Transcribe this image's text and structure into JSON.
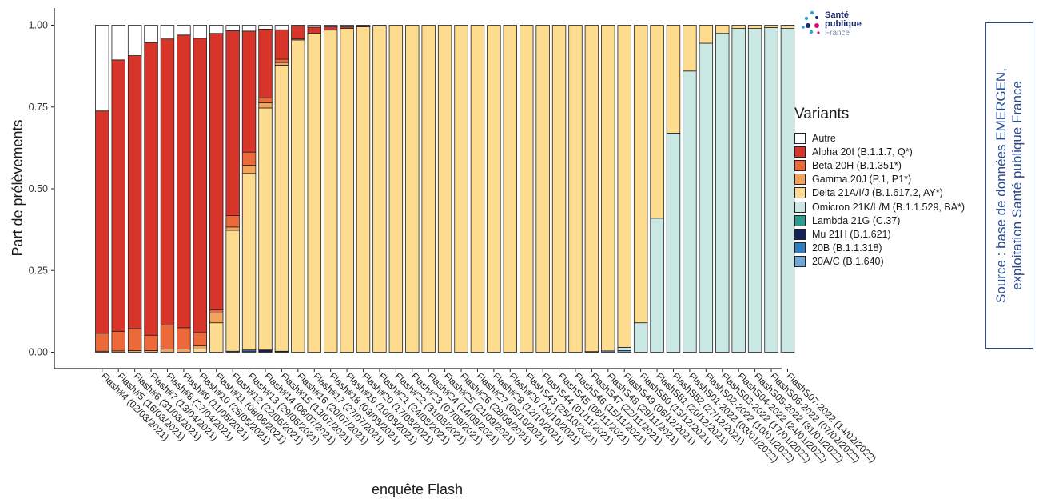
{
  "chart_data": {
    "type": "bar",
    "stacked": true,
    "xlabel": "enquête Flash",
    "ylabel": "Part de prélèvements",
    "ylim": [
      0,
      1
    ],
    "yticks": [
      "0.00",
      "0.25",
      "0.50",
      "0.75",
      "1.00"
    ],
    "legend_title": "Variants",
    "legend_position": "right",
    "series_order_bottom_to_top": [
      "20A/C (B.1.640)",
      "20B (B.1.1.318)",
      "Mu 21H (B.1.621)",
      "Lambda 21G (C.37)",
      "Omicron 21K/L/M (B.1.1.529, BA*)",
      "Delta 21A/I/J (B.1.617.2, AY*)",
      "Gamma 20J (P.1, P1*)",
      "Beta 20H (B.1.351*)",
      "Alpha 20I (B.1.1.7, Q*)",
      "Autre"
    ],
    "categories": [
      "Flash#4 (02/03/2021)",
      "Flash#5 (16/03/2021)",
      "Flash#6 (31/03/2021)",
      "Flash#7 (13/04/2021)",
      "Flash#8 (27/04/2021)",
      "Flash#9 (11/05/2021)",
      "Flash#10 (25/05/2021)",
      "Flash#11 (08/06/2021)",
      "Flash#12 (22/06/2021)",
      "Flash#13 (29/06/2021)",
      "Flash#14 (06/07/2021)",
      "Flash#15 (13/07/2021)",
      "Flash#16 (20/07/2021)",
      "Flash#17 (27/07/2021)",
      "Flash#18 (03/08/2021)",
      "Flash#19 (10/08/2021)",
      "Flash#20 (17/08/2021)",
      "Flash#21 (24/08/2021)",
      "Flash#22 (31/08/2021)",
      "Flash#23 (07/09/2021)",
      "Flash#24 (14/09/2021)",
      "Flash#25 (21/09/2021)",
      "Flash#26 (28/09/2021)",
      "Flash#27 (05/10/2021)",
      "Flash#28 (12/10/2021)",
      "Flash#29 (19/10/2021)",
      "FlashS43 (25/10/2021)",
      "FlashS44 (01/11/2021)",
      "FlashS45 (08/11/2021)",
      "FlashS46 (15/11/2021)",
      "FlashS47 (22/11/2021)",
      "FlashS48 (29/11/2021)",
      "FlashS49 (06/12/2021)",
      "FlashS50 (13/12/2021)",
      "FlashS51 (20/12/2021)",
      "FlashS52 (27/12/2021)",
      "FlashS01-2022 (03/01/2022)",
      "FlashS02-2022 (10/01/2022)",
      "FlashS03-2022 (17/01/2022)",
      "FlashS04-2022 (24/01/2022)",
      "FlashS05-2022 (31/01/2022)",
      "FlashS06-2022 (07/02/2022)",
      "FlashS07-2022 (14/02/2022)"
    ],
    "series": [
      {
        "name": "20A/C (B.1.640)",
        "color": "#6fa8d6",
        "values": [
          0,
          0,
          0,
          0,
          0,
          0,
          0,
          0,
          0,
          0.003,
          0,
          0,
          0,
          0,
          0,
          0,
          0,
          0,
          0,
          0,
          0,
          0,
          0,
          0,
          0,
          0,
          0,
          0,
          0,
          0,
          0.002,
          0.004,
          0.005,
          0,
          0,
          0,
          0,
          0,
          0,
          0,
          0,
          0,
          0
        ]
      },
      {
        "name": "20B (B.1.1.318)",
        "color": "#2f7fc1",
        "values": [
          0,
          0,
          0,
          0,
          0,
          0,
          0,
          0,
          0.003,
          0.004,
          0,
          0,
          0,
          0,
          0,
          0,
          0,
          0,
          0,
          0,
          0,
          0,
          0,
          0,
          0,
          0,
          0,
          0,
          0,
          0,
          0,
          0,
          0,
          0,
          0,
          0,
          0,
          0,
          0,
          0,
          0,
          0,
          0
        ]
      },
      {
        "name": "Mu 21H (B.1.621)",
        "color": "#13205a",
        "values": [
          0,
          0,
          0,
          0,
          0,
          0,
          0,
          0,
          0,
          0,
          0.007,
          0.003,
          0,
          0,
          0,
          0,
          0,
          0,
          0,
          0,
          0,
          0,
          0,
          0,
          0,
          0,
          0,
          0,
          0,
          0,
          0,
          0,
          0,
          0,
          0,
          0,
          0,
          0,
          0,
          0,
          0,
          0,
          0
        ]
      },
      {
        "name": "Lambda 21G (C.37)",
        "color": "#2a9d8f",
        "values": [
          0,
          0,
          0,
          0,
          0,
          0,
          0,
          0,
          0,
          0,
          0,
          0,
          0,
          0,
          0,
          0,
          0,
          0,
          0,
          0,
          0,
          0,
          0,
          0,
          0,
          0,
          0,
          0,
          0,
          0,
          0,
          0,
          0,
          0,
          0,
          0,
          0,
          0,
          0,
          0,
          0,
          0,
          0
        ]
      },
      {
        "name": "Omicron 21K/L/M (B.1.1.529, BA*)",
        "color": "#c9e7e3",
        "values": [
          0,
          0,
          0,
          0,
          0,
          0,
          0,
          0,
          0,
          0,
          0,
          0,
          0,
          0,
          0,
          0,
          0,
          0,
          0,
          0,
          0,
          0,
          0,
          0,
          0,
          0,
          0,
          0,
          0,
          0,
          0,
          0,
          0.01,
          0.09,
          0.41,
          0.67,
          0.86,
          0.945,
          0.975,
          0.99,
          0.99,
          0.993,
          0.99
        ]
      },
      {
        "name": "Delta 21A/I/J (B.1.617.2, AY*)",
        "color": "#fddc8f",
        "values": [
          0,
          0,
          0,
          0,
          0,
          0,
          0.01,
          0.09,
          0.37,
          0.54,
          0.74,
          0.875,
          0.955,
          0.975,
          0.985,
          0.99,
          0.995,
          0.998,
          1,
          1,
          1,
          1,
          1,
          1,
          1,
          1,
          1,
          1,
          1,
          1,
          0.998,
          0.996,
          0.985,
          0.91,
          0.59,
          0.33,
          0.14,
          0.055,
          0.025,
          0.01,
          0.01,
          0.007,
          0.008
        ]
      },
      {
        "name": "Gamma 20J (P.1, P1*)",
        "color": "#f3a35a",
        "values": [
          0.003,
          0.004,
          0.005,
          0.005,
          0.01,
          0.01,
          0.01,
          0.03,
          0.01,
          0.025,
          0.016,
          0.008,
          0.003,
          0,
          0,
          0,
          0,
          0,
          0,
          0,
          0,
          0,
          0,
          0,
          0,
          0,
          0,
          0,
          0,
          0,
          0,
          0,
          0,
          0,
          0,
          0,
          0,
          0,
          0,
          0,
          0,
          0,
          0
        ]
      },
      {
        "name": "Beta 20H (B.1.351*)",
        "color": "#ec6a3a",
        "values": [
          0.055,
          0.06,
          0.067,
          0.047,
          0.073,
          0.065,
          0.04,
          0.01,
          0.035,
          0.04,
          0.015,
          0.01,
          0,
          0,
          0,
          0,
          0,
          0,
          0,
          0,
          0,
          0,
          0,
          0,
          0,
          0,
          0,
          0,
          0,
          0,
          0,
          0,
          0,
          0,
          0,
          0,
          0,
          0,
          0,
          0,
          0,
          0,
          0
        ]
      },
      {
        "name": "Alpha 20I (B.1.1.7, Q*)",
        "color": "#d7352a",
        "values": [
          0.68,
          0.83,
          0.835,
          0.895,
          0.875,
          0.895,
          0.9,
          0.845,
          0.565,
          0.37,
          0.21,
          0.09,
          0.04,
          0.019,
          0.01,
          0.005,
          0.003,
          0,
          0,
          0,
          0,
          0,
          0,
          0,
          0,
          0,
          0,
          0,
          0,
          0,
          0,
          0,
          0,
          0,
          0,
          0,
          0,
          0,
          0,
          0,
          0,
          0,
          0
        ]
      },
      {
        "name": "Autre",
        "color": "#ffffff",
        "values": [
          0.262,
          0.106,
          0.093,
          0.053,
          0.042,
          0.03,
          0.04,
          0.025,
          0.017,
          0.018,
          0.012,
          0.014,
          0.002,
          0.006,
          0.005,
          0.005,
          0.002,
          0.002,
          0,
          0,
          0,
          0,
          0,
          0,
          0,
          0,
          0,
          0,
          0,
          0,
          0,
          0,
          0,
          0,
          0,
          0,
          0,
          0,
          0,
          0,
          0,
          0,
          0.002
        ]
      }
    ]
  },
  "legend": {
    "title": "Variants",
    "items": [
      {
        "label": "Autre",
        "color": "#ffffff"
      },
      {
        "label": "Alpha 20I (B.1.1.7, Q*)",
        "color": "#d7352a"
      },
      {
        "label": "Beta 20H (B.1.351*)",
        "color": "#ec6a3a"
      },
      {
        "label": "Gamma 20J (P.1, P1*)",
        "color": "#f3a35a"
      },
      {
        "label": "Delta 21A/I/J (B.1.617.2, AY*)",
        "color": "#fddc8f"
      },
      {
        "label": "Omicron 21K/L/M (B.1.1.529, BA*)",
        "color": "#c9e7e3"
      },
      {
        "label": "Lambda 21G (C.37)",
        "color": "#2a9d8f"
      },
      {
        "label": "Mu 21H (B.1.621)",
        "color": "#13205a"
      },
      {
        "label": "20B (B.1.1.318)",
        "color": "#2f7fc1"
      },
      {
        "label": "20A/C (B.1.640)",
        "color": "#6fa8d6"
      }
    ]
  },
  "logo": {
    "line1": "Santé",
    "line2": "publique",
    "line3": "France"
  },
  "source": {
    "line1": "Source : base de données EMERGEN,",
    "line2": "exploitation Santé publique France"
  }
}
